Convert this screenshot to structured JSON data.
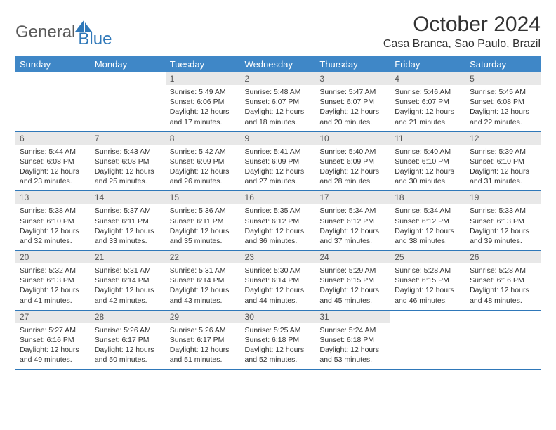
{
  "logo": {
    "part1": "General",
    "part2": "Blue"
  },
  "title": "October 2024",
  "location": "Casa Branca, Sao Paulo, Brazil",
  "colors": {
    "header_bg": "#3f87c7",
    "header_text": "#ffffff",
    "daynum_bg": "#e8e8e8",
    "border": "#2f78b9",
    "logo_gray": "#5a5a5a",
    "logo_blue": "#2f78b9"
  },
  "weekdays": [
    "Sunday",
    "Monday",
    "Tuesday",
    "Wednesday",
    "Thursday",
    "Friday",
    "Saturday"
  ],
  "weeks": [
    [
      null,
      null,
      {
        "n": "1",
        "sr": "5:49 AM",
        "ss": "6:06 PM",
        "dl": "12 hours and 17 minutes."
      },
      {
        "n": "2",
        "sr": "5:48 AM",
        "ss": "6:07 PM",
        "dl": "12 hours and 18 minutes."
      },
      {
        "n": "3",
        "sr": "5:47 AM",
        "ss": "6:07 PM",
        "dl": "12 hours and 20 minutes."
      },
      {
        "n": "4",
        "sr": "5:46 AM",
        "ss": "6:07 PM",
        "dl": "12 hours and 21 minutes."
      },
      {
        "n": "5",
        "sr": "5:45 AM",
        "ss": "6:08 PM",
        "dl": "12 hours and 22 minutes."
      }
    ],
    [
      {
        "n": "6",
        "sr": "5:44 AM",
        "ss": "6:08 PM",
        "dl": "12 hours and 23 minutes."
      },
      {
        "n": "7",
        "sr": "5:43 AM",
        "ss": "6:08 PM",
        "dl": "12 hours and 25 minutes."
      },
      {
        "n": "8",
        "sr": "5:42 AM",
        "ss": "6:09 PM",
        "dl": "12 hours and 26 minutes."
      },
      {
        "n": "9",
        "sr": "5:41 AM",
        "ss": "6:09 PM",
        "dl": "12 hours and 27 minutes."
      },
      {
        "n": "10",
        "sr": "5:40 AM",
        "ss": "6:09 PM",
        "dl": "12 hours and 28 minutes."
      },
      {
        "n": "11",
        "sr": "5:40 AM",
        "ss": "6:10 PM",
        "dl": "12 hours and 30 minutes."
      },
      {
        "n": "12",
        "sr": "5:39 AM",
        "ss": "6:10 PM",
        "dl": "12 hours and 31 minutes."
      }
    ],
    [
      {
        "n": "13",
        "sr": "5:38 AM",
        "ss": "6:10 PM",
        "dl": "12 hours and 32 minutes."
      },
      {
        "n": "14",
        "sr": "5:37 AM",
        "ss": "6:11 PM",
        "dl": "12 hours and 33 minutes."
      },
      {
        "n": "15",
        "sr": "5:36 AM",
        "ss": "6:11 PM",
        "dl": "12 hours and 35 minutes."
      },
      {
        "n": "16",
        "sr": "5:35 AM",
        "ss": "6:12 PM",
        "dl": "12 hours and 36 minutes."
      },
      {
        "n": "17",
        "sr": "5:34 AM",
        "ss": "6:12 PM",
        "dl": "12 hours and 37 minutes."
      },
      {
        "n": "18",
        "sr": "5:34 AM",
        "ss": "6:12 PM",
        "dl": "12 hours and 38 minutes."
      },
      {
        "n": "19",
        "sr": "5:33 AM",
        "ss": "6:13 PM",
        "dl": "12 hours and 39 minutes."
      }
    ],
    [
      {
        "n": "20",
        "sr": "5:32 AM",
        "ss": "6:13 PM",
        "dl": "12 hours and 41 minutes."
      },
      {
        "n": "21",
        "sr": "5:31 AM",
        "ss": "6:14 PM",
        "dl": "12 hours and 42 minutes."
      },
      {
        "n": "22",
        "sr": "5:31 AM",
        "ss": "6:14 PM",
        "dl": "12 hours and 43 minutes."
      },
      {
        "n": "23",
        "sr": "5:30 AM",
        "ss": "6:14 PM",
        "dl": "12 hours and 44 minutes."
      },
      {
        "n": "24",
        "sr": "5:29 AM",
        "ss": "6:15 PM",
        "dl": "12 hours and 45 minutes."
      },
      {
        "n": "25",
        "sr": "5:28 AM",
        "ss": "6:15 PM",
        "dl": "12 hours and 46 minutes."
      },
      {
        "n": "26",
        "sr": "5:28 AM",
        "ss": "6:16 PM",
        "dl": "12 hours and 48 minutes."
      }
    ],
    [
      {
        "n": "27",
        "sr": "5:27 AM",
        "ss": "6:16 PM",
        "dl": "12 hours and 49 minutes."
      },
      {
        "n": "28",
        "sr": "5:26 AM",
        "ss": "6:17 PM",
        "dl": "12 hours and 50 minutes."
      },
      {
        "n": "29",
        "sr": "5:26 AM",
        "ss": "6:17 PM",
        "dl": "12 hours and 51 minutes."
      },
      {
        "n": "30",
        "sr": "5:25 AM",
        "ss": "6:18 PM",
        "dl": "12 hours and 52 minutes."
      },
      {
        "n": "31",
        "sr": "5:24 AM",
        "ss": "6:18 PM",
        "dl": "12 hours and 53 minutes."
      },
      null,
      null
    ]
  ],
  "labels": {
    "sunrise": "Sunrise:",
    "sunset": "Sunset:",
    "daylight": "Daylight:"
  }
}
